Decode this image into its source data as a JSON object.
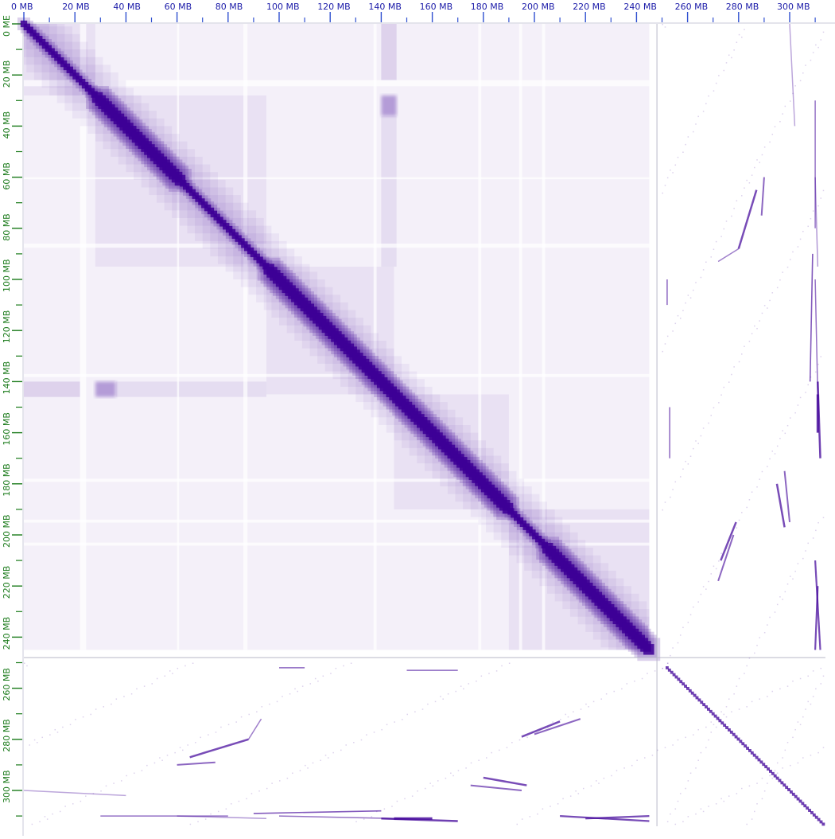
{
  "axes": {
    "top_tick_labels": [
      "0 MB",
      "20 MB",
      "40 MB",
      "60 MB",
      "80 MB",
      "100 MB",
      "120 MB",
      "140 MB",
      "160 MB",
      "180 MB",
      "200 MB",
      "220 MB",
      "240 MB",
      "260 MB",
      "280 MB",
      "300 MB",
      "3"
    ],
    "left_tick_labels": [
      "0 ME",
      "20 MB",
      "40 MB",
      "60 MB",
      "80 MB",
      "100 MB",
      "120 MB",
      "140 MB",
      "160 MB",
      "180 MB",
      "200 MB",
      "220 MB",
      "240 MB",
      "260 MB",
      "280 MB",
      "300 MB",
      "IB"
    ],
    "x_label_color": "#1a1aa8",
    "y_label_color": "#1a7a1a",
    "tick_color": "#3050d0"
  },
  "heatmap": {
    "color": "#3f0098",
    "sequence_boundaries_mb": [
      248
    ],
    "total_mb": 314
  }
}
